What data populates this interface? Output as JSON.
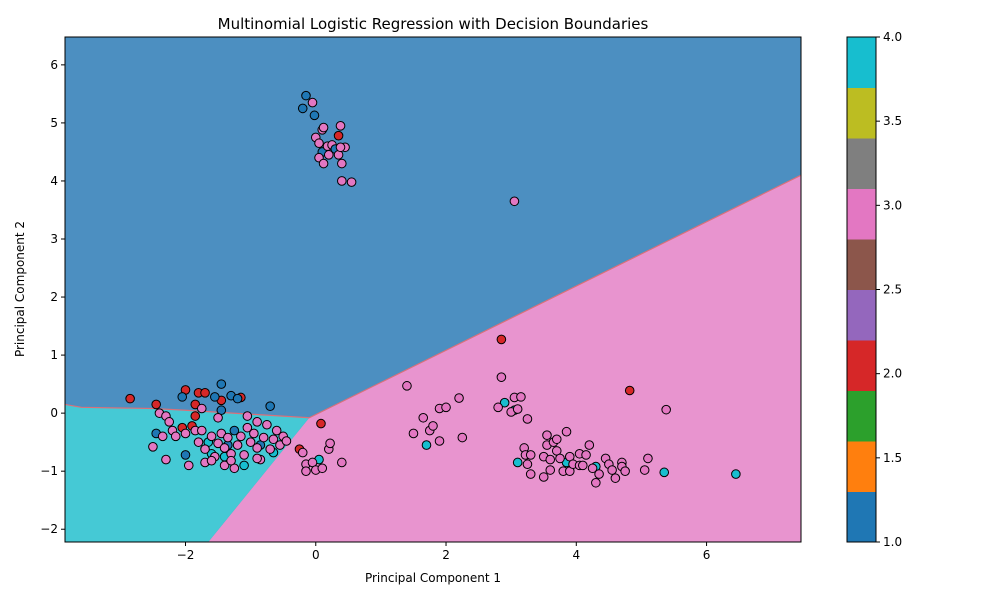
{
  "chart_data": {
    "type": "scatter",
    "title": "Multinomial Logistic Regression with Decision Boundaries",
    "xlabel": "Principal Component 1",
    "ylabel": "Principal Component 2",
    "xlim": [
      -3.85,
      7.45
    ],
    "ylim": [
      -2.22,
      6.48
    ],
    "x_ticks": [
      -2,
      0,
      2,
      4,
      6
    ],
    "y_ticks": [
      -2,
      -1,
      0,
      1,
      2,
      3,
      4,
      5,
      6
    ],
    "colorbar": {
      "range": [
        1.0,
        4.0
      ],
      "ticks": [
        1.0,
        1.5,
        2.0,
        2.5,
        3.0,
        3.5,
        4.0
      ],
      "tick_labels": [
        "1.0",
        "1.5",
        "2.0",
        "2.5",
        "3.0",
        "3.5",
        "4.0"
      ],
      "colormap": "tab10",
      "bands": [
        "#1f77b4",
        "#ff7f0e",
        "#2ca02c",
        "#d62728",
        "#9467bd",
        "#8c564b",
        "#e377c2",
        "#7f7f7f",
        "#bcbd22",
        "#17becf"
      ]
    },
    "decision_regions": [
      {
        "class": 1,
        "color": "#4c8fc1",
        "description_region": "upper"
      },
      {
        "class": 3,
        "color": "#e894cf",
        "description_region": "lower-right"
      },
      {
        "class": 4,
        "color": "#45c9d5",
        "description_region": "lower-left"
      }
    ],
    "class_colors": {
      "1": "#1f77b4",
      "2": "#d62728",
      "3": "#e377c2",
      "4": "#17becf"
    },
    "points": [
      {
        "x": -0.2,
        "y": 5.25,
        "c": 1
      },
      {
        "x": -0.15,
        "y": 5.47,
        "c": 1
      },
      {
        "x": -0.05,
        "y": 5.35,
        "c": 3
      },
      {
        "x": -0.02,
        "y": 5.13,
        "c": 1
      },
      {
        "x": 0.0,
        "y": 4.75,
        "c": 3
      },
      {
        "x": 0.05,
        "y": 4.65,
        "c": 3
      },
      {
        "x": 0.1,
        "y": 4.5,
        "c": 1
      },
      {
        "x": 0.1,
        "y": 4.88,
        "c": 3
      },
      {
        "x": 0.12,
        "y": 4.92,
        "c": 3
      },
      {
        "x": 0.18,
        "y": 4.6,
        "c": 3
      },
      {
        "x": 0.2,
        "y": 4.45,
        "c": 3
      },
      {
        "x": 0.25,
        "y": 4.62,
        "c": 3
      },
      {
        "x": 0.3,
        "y": 4.55,
        "c": 1
      },
      {
        "x": 0.35,
        "y": 4.45,
        "c": 3
      },
      {
        "x": 0.35,
        "y": 4.78,
        "c": 2
      },
      {
        "x": 0.38,
        "y": 4.95,
        "c": 3
      },
      {
        "x": 0.4,
        "y": 4.3,
        "c": 3
      },
      {
        "x": 0.45,
        "y": 4.58,
        "c": 3
      },
      {
        "x": 0.05,
        "y": 4.4,
        "c": 3
      },
      {
        "x": 0.12,
        "y": 4.3,
        "c": 3
      },
      {
        "x": 0.4,
        "y": 4.0,
        "c": 3
      },
      {
        "x": 0.55,
        "y": 3.98,
        "c": 3
      },
      {
        "x": 0.38,
        "y": 4.58,
        "c": 3
      },
      {
        "x": 3.05,
        "y": 3.65,
        "c": 3
      },
      {
        "x": -2.85,
        "y": 0.25,
        "c": 2
      },
      {
        "x": -2.45,
        "y": 0.15,
        "c": 2
      },
      {
        "x": -2.0,
        "y": 0.4,
        "c": 2
      },
      {
        "x": -1.8,
        "y": 0.35,
        "c": 2
      },
      {
        "x": -1.7,
        "y": 0.35,
        "c": 2
      },
      {
        "x": -1.45,
        "y": 0.22,
        "c": 2
      },
      {
        "x": -1.15,
        "y": 0.27,
        "c": 2
      },
      {
        "x": -1.85,
        "y": 0.15,
        "c": 2
      },
      {
        "x": -1.85,
        "y": -0.05,
        "c": 2
      },
      {
        "x": -2.05,
        "y": -0.25,
        "c": 2
      },
      {
        "x": -1.9,
        "y": -0.22,
        "c": 2
      },
      {
        "x": -0.25,
        "y": -0.62,
        "c": 2
      },
      {
        "x": 0.08,
        "y": -0.18,
        "c": 2
      },
      {
        "x": 2.85,
        "y": 1.27,
        "c": 2
      },
      {
        "x": 4.82,
        "y": 0.39,
        "c": 2
      },
      {
        "x": -2.05,
        "y": 0.28,
        "c": 1
      },
      {
        "x": -1.45,
        "y": 0.5,
        "c": 1
      },
      {
        "x": -1.3,
        "y": 0.3,
        "c": 1
      },
      {
        "x": -1.2,
        "y": 0.25,
        "c": 1
      },
      {
        "x": -1.55,
        "y": 0.28,
        "c": 1
      },
      {
        "x": -1.45,
        "y": 0.05,
        "c": 1
      },
      {
        "x": -0.7,
        "y": 0.12,
        "c": 1
      },
      {
        "x": -2.45,
        "y": -0.35,
        "c": 1
      },
      {
        "x": -2.0,
        "y": -0.72,
        "c": 1
      },
      {
        "x": -1.25,
        "y": -0.3,
        "c": 1
      },
      {
        "x": -1.35,
        "y": -0.55,
        "c": 1
      },
      {
        "x": -0.85,
        "y": -0.55,
        "c": 1
      },
      {
        "x": 2.9,
        "y": 0.18,
        "c": 4
      },
      {
        "x": 3.05,
        "y": 0.05,
        "c": 4
      },
      {
        "x": 1.7,
        "y": -0.55,
        "c": 4
      },
      {
        "x": 3.1,
        "y": -0.85,
        "c": 4
      },
      {
        "x": 3.85,
        "y": -0.85,
        "c": 4
      },
      {
        "x": 4.3,
        "y": -0.92,
        "c": 4
      },
      {
        "x": 5.35,
        "y": -1.02,
        "c": 4
      },
      {
        "x": 6.45,
        "y": -1.05,
        "c": 4
      },
      {
        "x": 0.05,
        "y": -0.8,
        "c": 4
      },
      {
        "x": -1.6,
        "y": -0.7,
        "c": 4
      },
      {
        "x": -1.4,
        "y": -0.75,
        "c": 4
      },
      {
        "x": -1.1,
        "y": -0.9,
        "c": 4
      },
      {
        "x": -0.65,
        "y": -0.68,
        "c": 4
      },
      {
        "x": -1.65,
        "y": -0.5,
        "c": 4
      },
      {
        "x": -2.5,
        "y": -0.58,
        "c": 3
      },
      {
        "x": -2.4,
        "y": 0.0,
        "c": 3
      },
      {
        "x": -2.3,
        "y": -0.05,
        "c": 3
      },
      {
        "x": -2.25,
        "y": -0.15,
        "c": 3
      },
      {
        "x": -2.2,
        "y": -0.3,
        "c": 3
      },
      {
        "x": -2.15,
        "y": -0.4,
        "c": 3
      },
      {
        "x": -2.35,
        "y": -0.4,
        "c": 3
      },
      {
        "x": -2.3,
        "y": -0.8,
        "c": 3
      },
      {
        "x": -2.0,
        "y": -0.35,
        "c": 3
      },
      {
        "x": -1.95,
        "y": -0.9,
        "c": 3
      },
      {
        "x": -1.85,
        "y": -0.3,
        "c": 3
      },
      {
        "x": -1.8,
        "y": -0.5,
        "c": 3
      },
      {
        "x": -1.75,
        "y": 0.08,
        "c": 3
      },
      {
        "x": -1.75,
        "y": -0.3,
        "c": 3
      },
      {
        "x": -1.7,
        "y": -0.62,
        "c": 3
      },
      {
        "x": -1.7,
        "y": -0.85,
        "c": 3
      },
      {
        "x": -1.6,
        "y": -0.4,
        "c": 3
      },
      {
        "x": -1.55,
        "y": -0.75,
        "c": 3
      },
      {
        "x": -1.5,
        "y": -0.52,
        "c": 3
      },
      {
        "x": -1.5,
        "y": -0.08,
        "c": 3
      },
      {
        "x": -1.45,
        "y": -0.35,
        "c": 3
      },
      {
        "x": -1.4,
        "y": -0.6,
        "c": 3
      },
      {
        "x": -1.4,
        "y": -0.9,
        "c": 3
      },
      {
        "x": -1.35,
        "y": -0.42,
        "c": 3
      },
      {
        "x": -1.3,
        "y": -0.7,
        "c": 3
      },
      {
        "x": -1.25,
        "y": -0.95,
        "c": 3
      },
      {
        "x": -1.2,
        "y": -0.55,
        "c": 3
      },
      {
        "x": -1.15,
        "y": -0.4,
        "c": 3
      },
      {
        "x": -1.1,
        "y": -0.72,
        "c": 3
      },
      {
        "x": -1.05,
        "y": -0.25,
        "c": 3
      },
      {
        "x": -1.05,
        "y": -0.05,
        "c": 3
      },
      {
        "x": -1.0,
        "y": -0.5,
        "c": 3
      },
      {
        "x": -0.95,
        "y": -0.35,
        "c": 3
      },
      {
        "x": -0.9,
        "y": -0.15,
        "c": 3
      },
      {
        "x": -0.9,
        "y": -0.6,
        "c": 3
      },
      {
        "x": -0.85,
        "y": -0.8,
        "c": 3
      },
      {
        "x": -0.8,
        "y": -0.42,
        "c": 3
      },
      {
        "x": -0.75,
        "y": -0.2,
        "c": 3
      },
      {
        "x": -0.7,
        "y": -0.62,
        "c": 3
      },
      {
        "x": -0.65,
        "y": -0.45,
        "c": 3
      },
      {
        "x": -0.6,
        "y": -0.3,
        "c": 3
      },
      {
        "x": -0.55,
        "y": -0.55,
        "c": 3
      },
      {
        "x": -0.5,
        "y": -0.4,
        "c": 3
      },
      {
        "x": -0.45,
        "y": -0.48,
        "c": 3
      },
      {
        "x": -0.9,
        "y": -0.78,
        "c": 3
      },
      {
        "x": -1.6,
        "y": -0.82,
        "c": 3
      },
      {
        "x": -1.3,
        "y": -0.82,
        "c": 3
      },
      {
        "x": -0.2,
        "y": -0.68,
        "c": 3
      },
      {
        "x": -0.15,
        "y": -0.88,
        "c": 3
      },
      {
        "x": -0.15,
        "y": -1.0,
        "c": 3
      },
      {
        "x": -0.05,
        "y": -0.85,
        "c": 3
      },
      {
        "x": 0.0,
        "y": -0.98,
        "c": 3
      },
      {
        "x": 0.1,
        "y": -0.95,
        "c": 3
      },
      {
        "x": 0.2,
        "y": -0.62,
        "c": 3
      },
      {
        "x": 0.22,
        "y": -0.52,
        "c": 3
      },
      {
        "x": 0.4,
        "y": -0.85,
        "c": 3
      },
      {
        "x": 1.4,
        "y": 0.47,
        "c": 3
      },
      {
        "x": 1.5,
        "y": -0.35,
        "c": 3
      },
      {
        "x": 1.65,
        "y": -0.08,
        "c": 3
      },
      {
        "x": 1.75,
        "y": -0.3,
        "c": 3
      },
      {
        "x": 1.8,
        "y": -0.22,
        "c": 3
      },
      {
        "x": 1.9,
        "y": 0.08,
        "c": 3
      },
      {
        "x": 1.9,
        "y": -0.48,
        "c": 3
      },
      {
        "x": 2.0,
        "y": 0.1,
        "c": 3
      },
      {
        "x": 2.2,
        "y": 0.26,
        "c": 3
      },
      {
        "x": 2.25,
        "y": -0.42,
        "c": 3
      },
      {
        "x": 2.8,
        "y": 0.1,
        "c": 3
      },
      {
        "x": 2.85,
        "y": 0.62,
        "c": 3
      },
      {
        "x": 3.0,
        "y": 0.02,
        "c": 3
      },
      {
        "x": 3.05,
        "y": 0.27,
        "c": 3
      },
      {
        "x": 3.1,
        "y": 0.07,
        "c": 3
      },
      {
        "x": 3.15,
        "y": 0.28,
        "c": 3
      },
      {
        "x": 3.2,
        "y": -0.6,
        "c": 3
      },
      {
        "x": 3.22,
        "y": -0.72,
        "c": 3
      },
      {
        "x": 3.25,
        "y": -0.1,
        "c": 3
      },
      {
        "x": 3.25,
        "y": -0.88,
        "c": 3
      },
      {
        "x": 3.3,
        "y": -0.72,
        "c": 3
      },
      {
        "x": 3.3,
        "y": -1.05,
        "c": 3
      },
      {
        "x": 3.5,
        "y": -0.75,
        "c": 3
      },
      {
        "x": 3.5,
        "y": -1.1,
        "c": 3
      },
      {
        "x": 3.55,
        "y": -0.55,
        "c": 3
      },
      {
        "x": 3.55,
        "y": -0.38,
        "c": 3
      },
      {
        "x": 3.6,
        "y": -0.8,
        "c": 3
      },
      {
        "x": 3.6,
        "y": -0.98,
        "c": 3
      },
      {
        "x": 3.65,
        "y": -0.5,
        "c": 3
      },
      {
        "x": 3.7,
        "y": -0.45,
        "c": 3
      },
      {
        "x": 3.7,
        "y": -0.65,
        "c": 3
      },
      {
        "x": 3.75,
        "y": -0.78,
        "c": 3
      },
      {
        "x": 3.8,
        "y": -1.0,
        "c": 3
      },
      {
        "x": 3.85,
        "y": -0.32,
        "c": 3
      },
      {
        "x": 3.9,
        "y": -0.75,
        "c": 3
      },
      {
        "x": 3.9,
        "y": -1.0,
        "c": 3
      },
      {
        "x": 3.95,
        "y": -0.88,
        "c": 3
      },
      {
        "x": 4.05,
        "y": -0.7,
        "c": 3
      },
      {
        "x": 4.05,
        "y": -0.9,
        "c": 3
      },
      {
        "x": 4.1,
        "y": -0.9,
        "c": 3
      },
      {
        "x": 4.15,
        "y": -0.72,
        "c": 3
      },
      {
        "x": 4.2,
        "y": -0.55,
        "c": 3
      },
      {
        "x": 4.25,
        "y": -0.95,
        "c": 3
      },
      {
        "x": 4.3,
        "y": -1.2,
        "c": 3
      },
      {
        "x": 4.35,
        "y": -1.05,
        "c": 3
      },
      {
        "x": 4.45,
        "y": -0.78,
        "c": 3
      },
      {
        "x": 4.5,
        "y": -0.88,
        "c": 3
      },
      {
        "x": 4.55,
        "y": -0.98,
        "c": 3
      },
      {
        "x": 4.6,
        "y": -1.12,
        "c": 3
      },
      {
        "x": 4.7,
        "y": -0.85,
        "c": 3
      },
      {
        "x": 4.7,
        "y": -0.92,
        "c": 3
      },
      {
        "x": 4.75,
        "y": -1.0,
        "c": 3
      },
      {
        "x": 5.05,
        "y": -0.98,
        "c": 3
      },
      {
        "x": 5.1,
        "y": -0.78,
        "c": 3
      },
      {
        "x": 5.38,
        "y": 0.06,
        "c": 3
      }
    ]
  }
}
